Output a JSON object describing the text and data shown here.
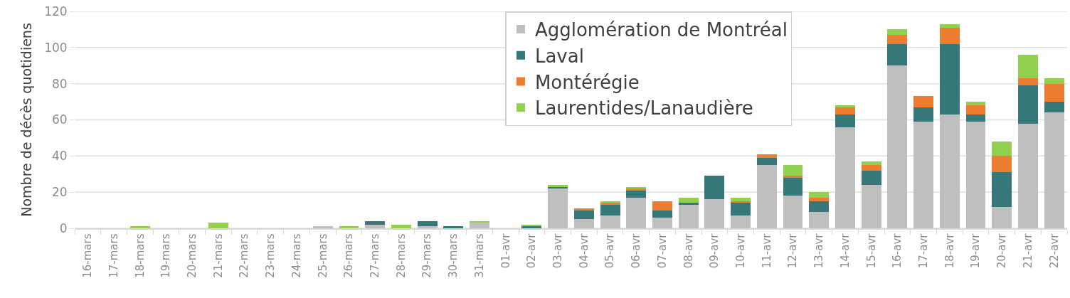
{
  "chart_data": {
    "type": "bar",
    "stacked": true,
    "ylabel": "Nombre de décès quotidiens",
    "categories": [
      "16-mars",
      "17-mars",
      "18-mars",
      "19-mars",
      "20-mars",
      "21-mars",
      "22-mars",
      "23-mars",
      "24-mars",
      "25-mars",
      "26-mars",
      "27-mars",
      "28-mars",
      "29-mars",
      "30-mars",
      "31-mars",
      "01-avr",
      "02-avr",
      "03-avr",
      "04-avr",
      "05-avr",
      "06-avr",
      "07-avr",
      "08-avr",
      "09-avr",
      "10-avr",
      "11-avr",
      "12-avr",
      "13-avr",
      "14-avr",
      "15-avr",
      "16-avr",
      "17-avr",
      "18-avr",
      "19-avr",
      "20-avr",
      "21-avr",
      "22-avr"
    ],
    "series": [
      {
        "name": "Agglomération de Montréal",
        "color": "#bfbfbf",
        "values": [
          0,
          0,
          0,
          0,
          0,
          0,
          0,
          0,
          0,
          1,
          0,
          2,
          0,
          1,
          0,
          3,
          0,
          0,
          22,
          5,
          7,
          17,
          6,
          13,
          16,
          7,
          35,
          18,
          9,
          56,
          24,
          90,
          59,
          63,
          59,
          12,
          58,
          64
        ]
      },
      {
        "name": "Laval",
        "color": "#36787a",
        "values": [
          0,
          0,
          0,
          0,
          0,
          0,
          0,
          0,
          0,
          0,
          0,
          2,
          0,
          3,
          1,
          0,
          0,
          1,
          1,
          5,
          6,
          4,
          4,
          1,
          13,
          7,
          4,
          10,
          6,
          7,
          8,
          12,
          8,
          39,
          4,
          19,
          21,
          6
        ]
      },
      {
        "name": "Montérégie",
        "color": "#ed7d31",
        "values": [
          0,
          0,
          0,
          0,
          0,
          0,
          0,
          0,
          0,
          0,
          0,
          0,
          0,
          0,
          0,
          0,
          0,
          0,
          0,
          1,
          1,
          1,
          5,
          0,
          0,
          1,
          2,
          1,
          2,
          4,
          3,
          5,
          6,
          9,
          5,
          9,
          4,
          10
        ]
      },
      {
        "name": "Laurentides/Lanaudière",
        "color": "#92d050",
        "values": [
          0,
          0,
          1,
          0,
          0,
          3,
          0,
          0,
          0,
          0,
          1,
          0,
          2,
          0,
          0,
          1,
          0,
          1,
          1,
          0,
          1,
          1,
          0,
          3,
          0,
          2,
          0,
          6,
          3,
          1,
          2,
          3,
          0,
          2,
          2,
          8,
          13,
          3
        ]
      }
    ],
    "ylim": [
      0,
      120
    ],
    "yticks": [
      0,
      20,
      40,
      60,
      80,
      100,
      120
    ],
    "grid": "y",
    "legend": "top"
  }
}
